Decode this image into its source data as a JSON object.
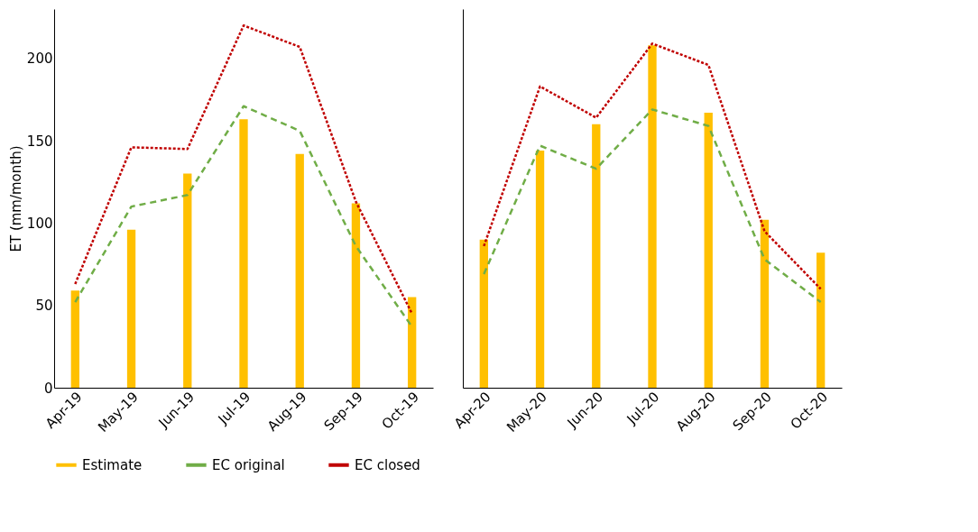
{
  "chart_data": [
    {
      "type": "bar",
      "ylabel": "ET (mm/month)",
      "categories": [
        "Apr-19",
        "May-19",
        "Jun-19",
        "Jul-19",
        "Aug-19",
        "Sep-19",
        "Oct-19"
      ],
      "ylim": [
        0,
        230
      ],
      "yticks": [
        0,
        50,
        100,
        150,
        200
      ],
      "grid": false,
      "legend": "bottom",
      "series": [
        {
          "name": "Estimate",
          "color": "#ffc000",
          "values": [
            59,
            96,
            130,
            163,
            142,
            112,
            55
          ]
        },
        {
          "name": "EC original",
          "type": "line",
          "line_style": "dashed",
          "color": "#70ad47",
          "values": [
            52,
            110,
            117,
            171,
            156,
            86,
            37
          ]
        },
        {
          "name": "EC closed",
          "type": "line",
          "line_style": "dotted",
          "color": "#c00000",
          "values": [
            63,
            146,
            145,
            220,
            207,
            113,
            45
          ]
        }
      ]
    },
    {
      "type": "bar",
      "categories": [
        "Apr-20",
        "May-20",
        "Jun-20",
        "Jul-20",
        "Aug-20",
        "Sep-20",
        "Oct-20"
      ],
      "ylim": [
        0,
        230
      ],
      "yticks": [
        0,
        50,
        100,
        150,
        200
      ],
      "grid": false,
      "tick_labels": "x",
      "series": [
        {
          "color": "#ffc000",
          "values": [
            90,
            144,
            160,
            208,
            167,
            102,
            82
          ]
        },
        {
          "type": "line",
          "line_style": "dashed",
          "color": "#70ad47",
          "values": [
            69,
            147,
            133,
            169,
            159,
            78,
            52
          ]
        },
        {
          "type": "line",
          "line_style": "dotted",
          "color": "#c00000",
          "values": [
            86,
            183,
            164,
            209,
            196,
            95,
            60
          ]
        }
      ]
    }
  ]
}
